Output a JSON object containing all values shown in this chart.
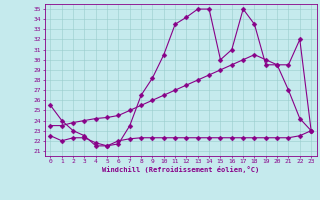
{
  "xlabel": "Windchill (Refroidissement éolien,°C)",
  "bg_color": "#c5eaed",
  "line_color": "#880088",
  "grid_color": "#99cccc",
  "xlim_min": -0.5,
  "xlim_max": 23.5,
  "ylim_min": 20.5,
  "ylim_max": 35.5,
  "yticks": [
    21,
    22,
    23,
    24,
    25,
    26,
    27,
    28,
    29,
    30,
    31,
    32,
    33,
    34,
    35
  ],
  "xticks": [
    0,
    1,
    2,
    3,
    4,
    5,
    6,
    7,
    8,
    9,
    10,
    11,
    12,
    13,
    14,
    15,
    16,
    17,
    18,
    19,
    20,
    21,
    22,
    23
  ],
  "curve1_x": [
    0,
    1,
    2,
    3,
    4,
    5,
    6,
    7,
    8,
    9,
    10,
    11,
    12,
    13,
    14,
    15,
    16,
    17,
    18,
    19,
    20,
    21,
    22,
    23
  ],
  "curve1_y": [
    25.5,
    24.0,
    23.0,
    22.5,
    21.5,
    21.5,
    21.7,
    23.5,
    26.5,
    28.2,
    30.5,
    33.5,
    34.2,
    35.0,
    35.0,
    30.0,
    31.0,
    35.0,
    33.5,
    29.5,
    29.5,
    27.0,
    24.2,
    23.0
  ],
  "curve2_x": [
    0,
    1,
    2,
    3,
    4,
    5,
    6,
    7,
    8,
    9,
    10,
    11,
    12,
    13,
    14,
    15,
    16,
    17,
    18,
    19,
    20,
    21,
    22,
    23
  ],
  "curve2_y": [
    23.5,
    23.5,
    23.8,
    24.0,
    24.2,
    24.3,
    24.5,
    25.0,
    25.5,
    26.0,
    26.5,
    27.0,
    27.5,
    28.0,
    28.5,
    29.0,
    29.5,
    30.0,
    30.5,
    30.0,
    29.5,
    29.5,
    32.0,
    23.0
  ],
  "curve3_x": [
    0,
    1,
    2,
    3,
    4,
    5,
    6,
    7,
    8,
    9,
    10,
    11,
    12,
    13,
    14,
    15,
    16,
    17,
    18,
    19,
    20,
    21,
    22,
    23
  ],
  "curve3_y": [
    22.5,
    22.0,
    22.3,
    22.3,
    21.8,
    21.5,
    22.0,
    22.2,
    22.3,
    22.3,
    22.3,
    22.3,
    22.3,
    22.3,
    22.3,
    22.3,
    22.3,
    22.3,
    22.3,
    22.3,
    22.3,
    22.3,
    22.5,
    23.0
  ],
  "markersize": 2.5,
  "linewidth": 0.8,
  "tick_fontsize": 4.5,
  "xlabel_fontsize": 5.0
}
